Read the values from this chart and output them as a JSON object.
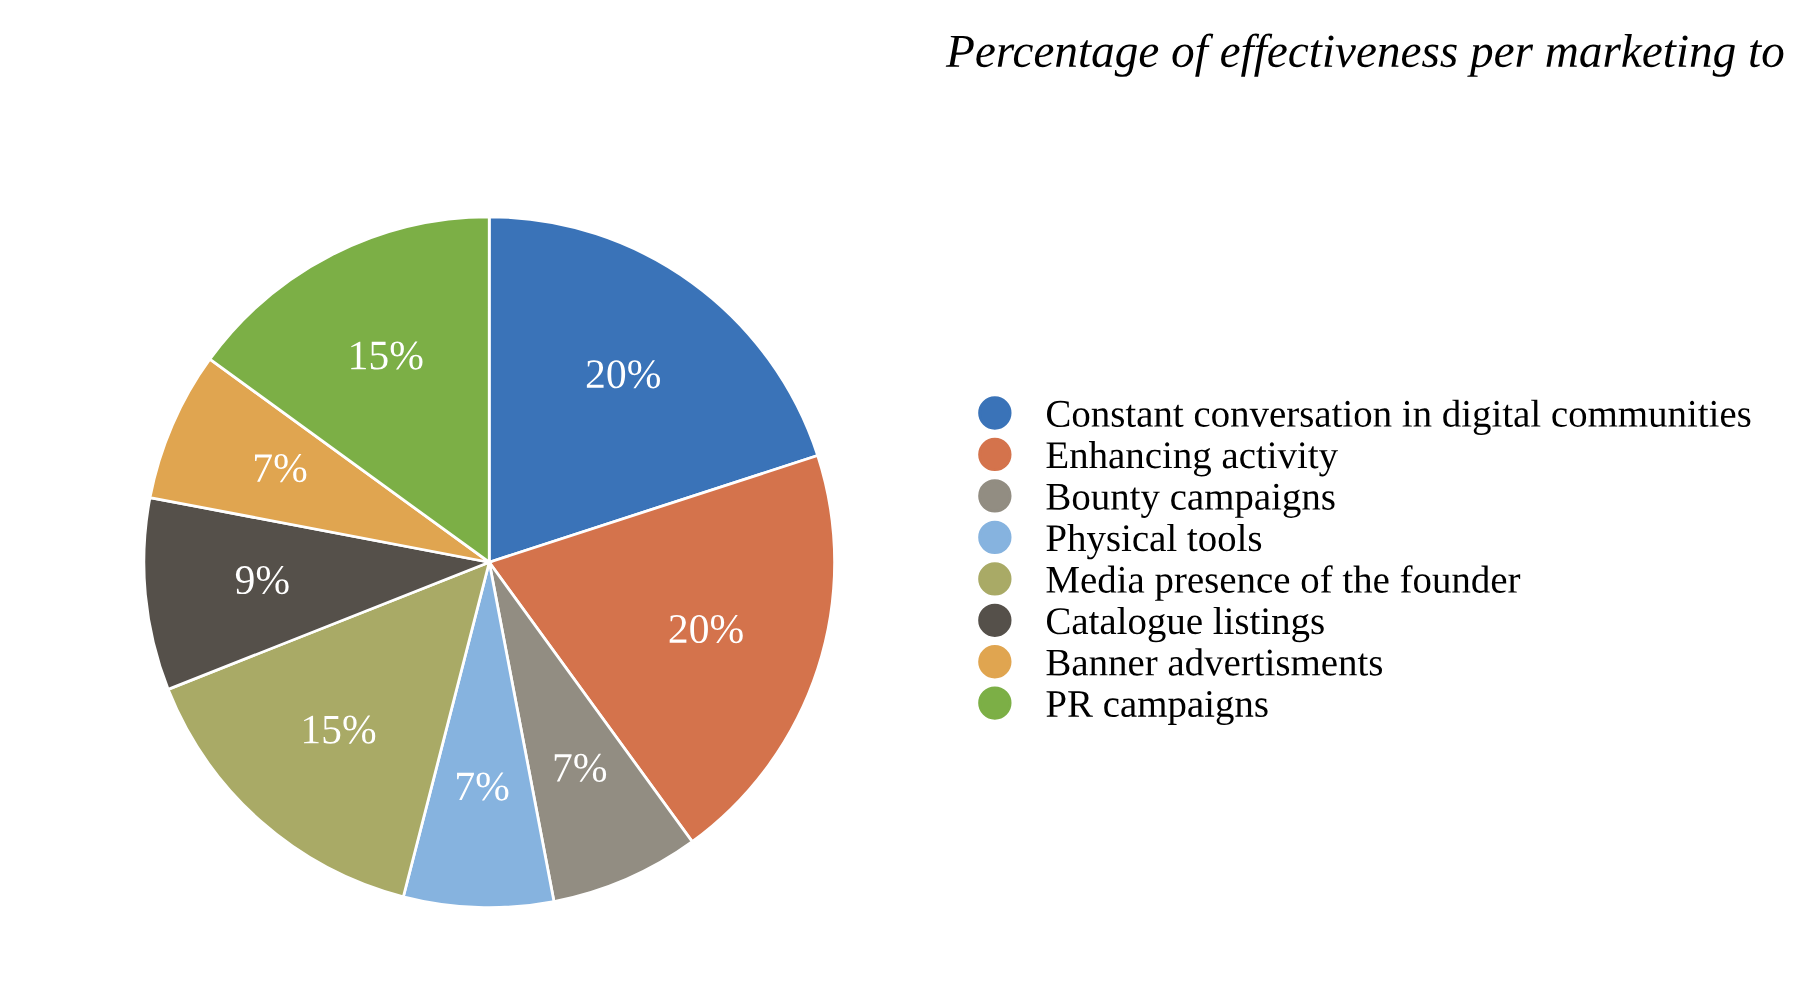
{
  "chart_data": {
    "type": "pie",
    "title": "Percentage of effectiveness per marketing to",
    "categories": [
      "Constant conversation in digital communities",
      "Enhancing activity",
      "Bounty campaigns",
      "Physical tools",
      "Media presence of the founder",
      "Catalogue listings",
      "Banner advertisments",
      "PR campaigns"
    ],
    "values": [
      20,
      20,
      7,
      7,
      15,
      9,
      7,
      15
    ],
    "colors": [
      "#3a73b8",
      "#d4734c",
      "#928d82",
      "#86b3df",
      "#a9aa66",
      "#55504a",
      "#e0a550",
      "#7caf46"
    ],
    "value_labels": [
      "20%",
      "20%",
      "7%",
      "7%",
      "15%",
      "9%",
      "7%",
      "15%"
    ],
    "legend": "right"
  }
}
